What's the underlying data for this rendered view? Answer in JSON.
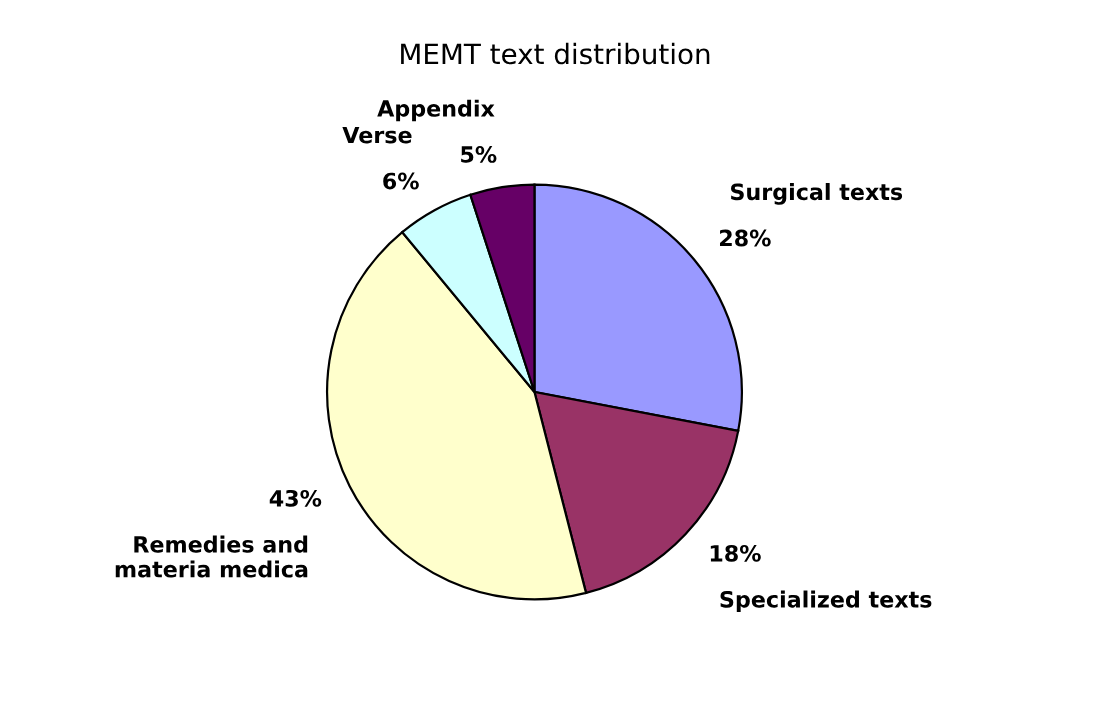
{
  "chart_data": {
    "type": "pie",
    "title": "MEMT text distribution",
    "categories": [
      "Surgical texts",
      "Specialized texts",
      "Remedies and\nmateria medica",
      "Verse",
      "Appendix"
    ],
    "values": [
      28,
      18,
      43,
      6,
      5
    ],
    "value_labels": [
      "28%",
      "18%",
      "43%",
      "6%",
      "5%"
    ],
    "colors": [
      "#9999ff",
      "#993366",
      "#ffffcc",
      "#ccffff",
      "#660066"
    ],
    "legend": false
  }
}
